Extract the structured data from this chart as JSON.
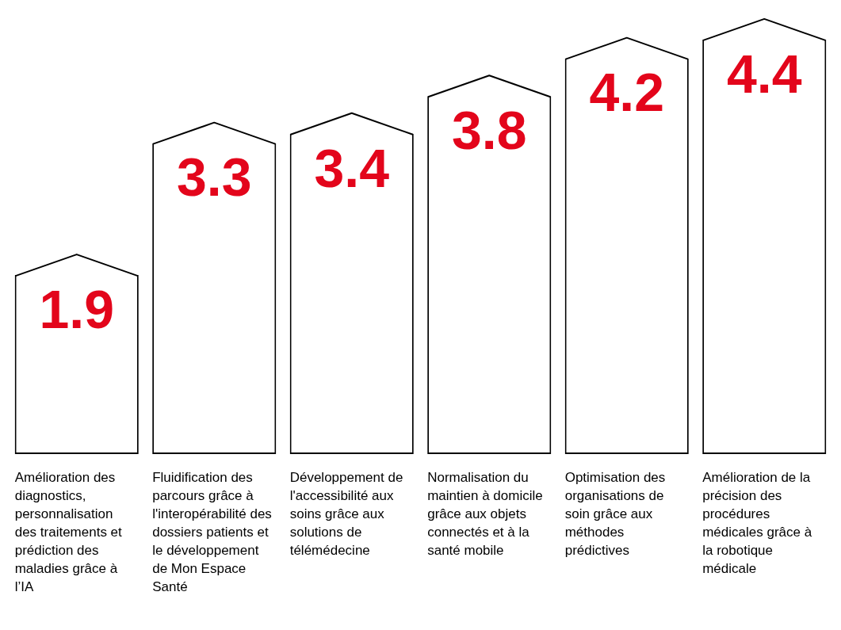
{
  "chart_data": {
    "type": "bar",
    "categories": [
      "Amélioration des diagnostics, personnalisation des traitements et prédiction des maladies grâce à l’IA",
      "Fluidification des parcours grâce à l'interopérabilité des dossiers patients et le développement de Mon Espace Santé",
      "Développement de l'accessibilité aux soins grâce aux solutions de télémédecine",
      "Normalisation du maintien à domicile grâce aux objets connectés et à la santé mobile",
      "Optimisation des organisations de soin grâce aux méthodes prédictives",
      "Amélioration de la précision des procédures médicales grâce à la robotique médicale"
    ],
    "values": [
      1.9,
      3.3,
      3.4,
      3.8,
      4.2,
      4.4
    ],
    "data_labels": true,
    "color": "#ffffff",
    "tick_labels": "x",
    "legend": false
  }
}
